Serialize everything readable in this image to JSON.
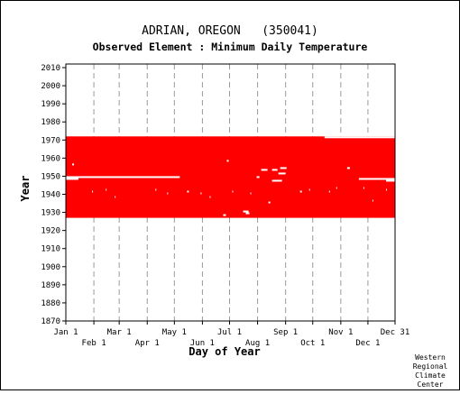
{
  "chart_data": {
    "type": "heatmap",
    "title": "ADRIAN, OREGON   (350041)",
    "subtitle": "Observed Element : Minimum Daily Temperature",
    "xlabel": "Day of Year",
    "ylabel": "Year",
    "xlim": [
      1,
      365
    ],
    "ylim": [
      1870,
      2012
    ],
    "yticks": [
      1870,
      1880,
      1890,
      1900,
      1910,
      1920,
      1930,
      1940,
      1950,
      1960,
      1970,
      1980,
      1990,
      2000,
      2010
    ],
    "xticks_top_row": [
      {
        "day": 1,
        "label": "Jan 1"
      },
      {
        "day": 60,
        "label": "Mar 1"
      },
      {
        "day": 121,
        "label": "May 1"
      },
      {
        "day": 182,
        "label": "Jul 1"
      },
      {
        "day": 244,
        "label": "Sep 1"
      },
      {
        "day": 305,
        "label": "Nov 1"
      },
      {
        "day": 365,
        "label": "Dec 31"
      }
    ],
    "xticks_bottom_row": [
      {
        "day": 32,
        "label": "Feb 1"
      },
      {
        "day": 91,
        "label": "Apr 1"
      },
      {
        "day": 152,
        "label": "Jun 1"
      },
      {
        "day": 213,
        "label": "Aug 1"
      },
      {
        "day": 274,
        "label": "Oct 1"
      },
      {
        "day": 335,
        "label": "Dec 1"
      }
    ],
    "grid": true,
    "data_color": "#ff0000",
    "record_period": {
      "start_year": 1927,
      "end_year": 1972
    },
    "missing_data": [
      {
        "day_start": 1,
        "day_end": 15,
        "year_start": 1948,
        "year_end": 1950
      },
      {
        "day_start": 15,
        "day_end": 127,
        "year_start": 1949,
        "year_end": 1950
      },
      {
        "day_start": 287,
        "day_end": 365,
        "year_start": 1971,
        "year_end": 1972
      },
      {
        "day_start": 325,
        "day_end": 365,
        "year_start": 1948,
        "year_end": 1949
      },
      {
        "day_start": 355,
        "day_end": 365,
        "year_start": 1947,
        "year_end": 1948
      },
      {
        "day_start": 8,
        "day_end": 10,
        "year_start": 1956,
        "year_end": 1957
      },
      {
        "day_start": 179,
        "day_end": 181,
        "year_start": 1958,
        "year_end": 1959
      },
      {
        "day_start": 217,
        "day_end": 224,
        "year_start": 1953,
        "year_end": 1954
      },
      {
        "day_start": 229,
        "day_end": 235,
        "year_start": 1953,
        "year_end": 1954
      },
      {
        "day_start": 238,
        "day_end": 245,
        "year_start": 1954,
        "year_end": 1955
      },
      {
        "day_start": 236,
        "day_end": 244,
        "year_start": 1951,
        "year_end": 1952
      },
      {
        "day_start": 229,
        "day_end": 240,
        "year_start": 1947,
        "year_end": 1948
      },
      {
        "day_start": 212,
        "day_end": 215,
        "year_start": 1949,
        "year_end": 1950
      },
      {
        "day_start": 312,
        "day_end": 315,
        "year_start": 1954,
        "year_end": 1955
      },
      {
        "day_start": 225,
        "day_end": 227,
        "year_start": 1935,
        "year_end": 1936
      },
      {
        "day_start": 197,
        "day_end": 203,
        "year_start": 1930,
        "year_end": 1931
      },
      {
        "day_start": 175,
        "day_end": 178,
        "year_start": 1928,
        "year_end": 1929
      },
      {
        "day_start": 200,
        "day_end": 204,
        "year_start": 1929,
        "year_end": 1930
      },
      {
        "day_start": 30,
        "day_end": 31,
        "year_start": 1941,
        "year_end": 1942
      },
      {
        "day_start": 45,
        "day_end": 46,
        "year_start": 1942,
        "year_end": 1943
      },
      {
        "day_start": 55,
        "day_end": 56,
        "year_start": 1938,
        "year_end": 1939
      },
      {
        "day_start": 100,
        "day_end": 101,
        "year_start": 1942,
        "year_end": 1943
      },
      {
        "day_start": 113,
        "day_end": 114,
        "year_start": 1940,
        "year_end": 1941
      },
      {
        "day_start": 135,
        "day_end": 137,
        "year_start": 1941,
        "year_end": 1942
      },
      {
        "day_start": 150,
        "day_end": 151,
        "year_start": 1940,
        "year_end": 1941
      },
      {
        "day_start": 160,
        "day_end": 161,
        "year_start": 1938,
        "year_end": 1939
      },
      {
        "day_start": 185,
        "day_end": 186,
        "year_start": 1941,
        "year_end": 1942
      },
      {
        "day_start": 205,
        "day_end": 206,
        "year_start": 1940,
        "year_end": 1941
      },
      {
        "day_start": 260,
        "day_end": 262,
        "year_start": 1941,
        "year_end": 1942
      },
      {
        "day_start": 270,
        "day_end": 271,
        "year_start": 1942,
        "year_end": 1943
      },
      {
        "day_start": 292,
        "day_end": 293,
        "year_start": 1941,
        "year_end": 1942
      },
      {
        "day_start": 300,
        "day_end": 301,
        "year_start": 1943,
        "year_end": 1944
      },
      {
        "day_start": 330,
        "day_end": 331,
        "year_start": 1943,
        "year_end": 1944
      },
      {
        "day_start": 340,
        "day_end": 341,
        "year_start": 1936,
        "year_end": 1937
      },
      {
        "day_start": 355,
        "day_end": 356,
        "year_start": 1942,
        "year_end": 1943
      }
    ]
  },
  "credit": [
    "Western",
    "Regional",
    "Climate",
    "Center"
  ]
}
